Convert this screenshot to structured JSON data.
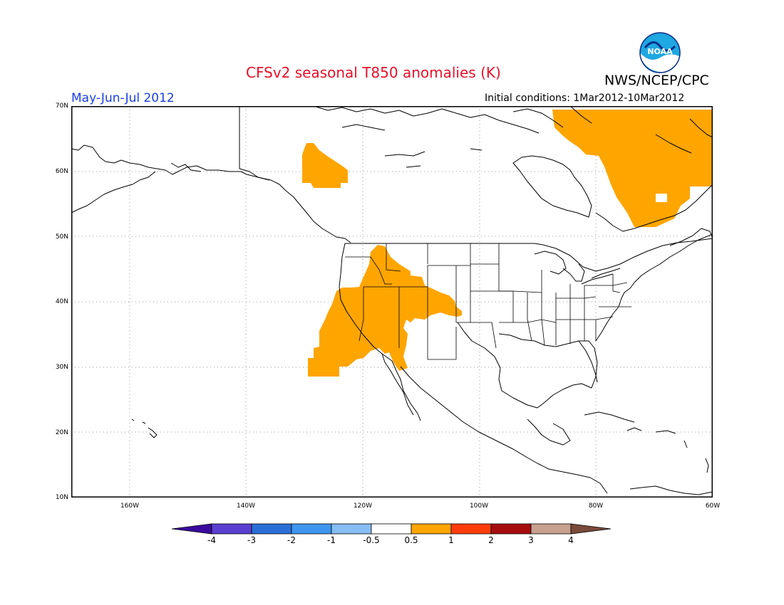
{
  "header": {
    "title": "CFSv2 seasonal T850 anomalies (K)",
    "agency": "NWS/NCEP/CPC",
    "season": "May-Jun-Jul 2012",
    "initial_conditions": "Initial conditions: 1Mar2012-10Mar2012",
    "logo_text": "NOAA"
  },
  "map": {
    "lat_labels": [
      "70N",
      "60N",
      "50N",
      "40N",
      "30N",
      "20N",
      "10N"
    ],
    "lon_labels": [
      "160W",
      "140W",
      "120W",
      "100W",
      "80W",
      "60W"
    ],
    "anomaly_fill_color": "#ffa500",
    "coast_color": "#000000",
    "grid_style": "dotted"
  },
  "colorbar": {
    "ticks": [
      "-4",
      "-3",
      "-2",
      "-1",
      "-0.5",
      "0.5",
      "1",
      "2",
      "3",
      "4"
    ],
    "colors": [
      "#3a0a9e",
      "#5a3fd0",
      "#2a6fd6",
      "#3e96ee",
      "#86bef5",
      "#ffffff",
      "#ffa500",
      "#ff3c0a",
      "#a50e0e",
      "#c7a08e",
      "#7a4b3a"
    ]
  }
}
